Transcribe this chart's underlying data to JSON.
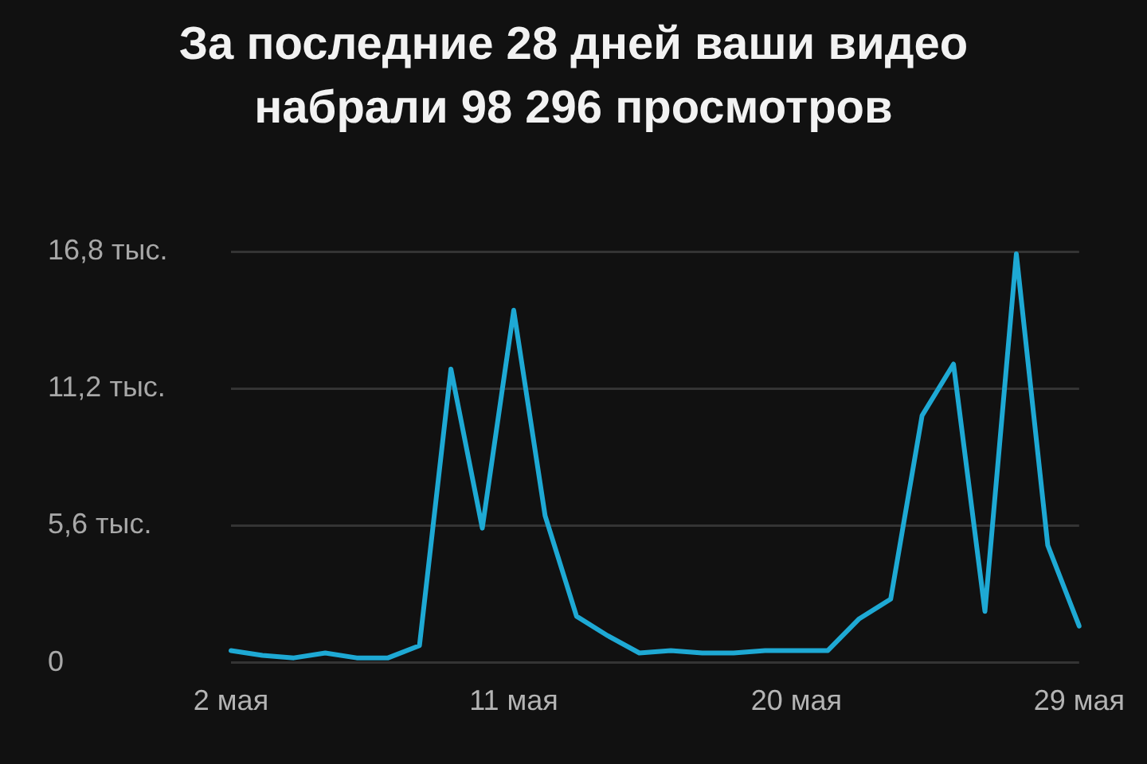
{
  "chart_data": {
    "type": "line",
    "title": "За последние 28 дней ваши видео набрали 98 296 просмотров",
    "categories": [
      "2 мая",
      null,
      null,
      null,
      null,
      null,
      null,
      null,
      null,
      "11 мая",
      null,
      null,
      null,
      null,
      null,
      null,
      null,
      null,
      "20 мая",
      null,
      null,
      null,
      null,
      null,
      null,
      null,
      null,
      "29 мая"
    ],
    "values": [
      0.5,
      0.3,
      0.2,
      0.4,
      0.2,
      0.2,
      0.7,
      12.0,
      5.5,
      14.4,
      6.0,
      1.9,
      1.1,
      0.4,
      0.5,
      0.4,
      0.4,
      0.5,
      0.5,
      0.5,
      1.8,
      2.6,
      10.1,
      12.2,
      2.1,
      16.7,
      4.8,
      1.5
    ],
    "color": "#1ea9d4",
    "ylim": [
      0,
      16.8
    ],
    "yticks": [
      0,
      {
        "value": 5.6,
        "label": "5,6 тыс."
      },
      {
        "value": 11.2,
        "label": "11,2 тыс."
      },
      {
        "value": 16.8,
        "label": "16,8 тыс."
      }
    ],
    "grid": "y"
  }
}
